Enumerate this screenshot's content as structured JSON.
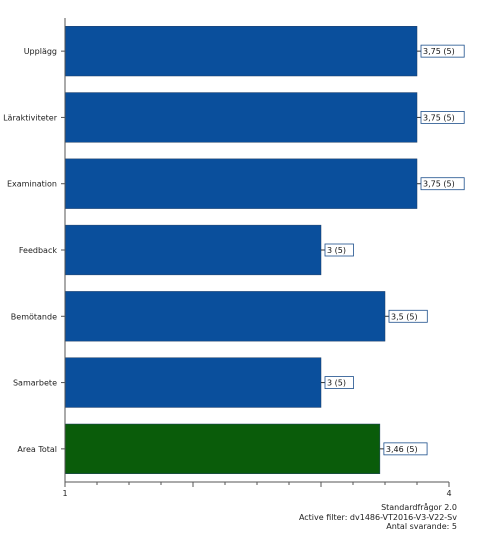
{
  "chart_data": {
    "type": "bar",
    "orientation": "horizontal",
    "categories": [
      "Upplägg",
      "Läraktiviteter",
      "Examination",
      "Feedback",
      "Bemötande",
      "Samarbete",
      "Area Total"
    ],
    "values": [
      3.75,
      3.75,
      3.75,
      3,
      3.5,
      3,
      3.46
    ],
    "value_labels": [
      "3,75 (5)",
      "3,75 (5)",
      "3,75 (5)",
      "3 (5)",
      "3,5 (5)",
      "3 (5)",
      "3,46 (5)"
    ],
    "colors": [
      "#0a4f9c",
      "#0a4f9c",
      "#0a4f9c",
      "#0a4f9c",
      "#0a4f9c",
      "#0a4f9c",
      "#0a5c0a"
    ],
    "xlim": [
      1,
      4
    ],
    "x_tick_labels": [
      "1",
      "4"
    ],
    "grid": false
  },
  "footer": {
    "line1": "Standardfrågor 2.0",
    "line2": "Active filter: dv1486-VT2016-V3-V22-Sv",
    "line3": "Antal svarande: 5"
  }
}
